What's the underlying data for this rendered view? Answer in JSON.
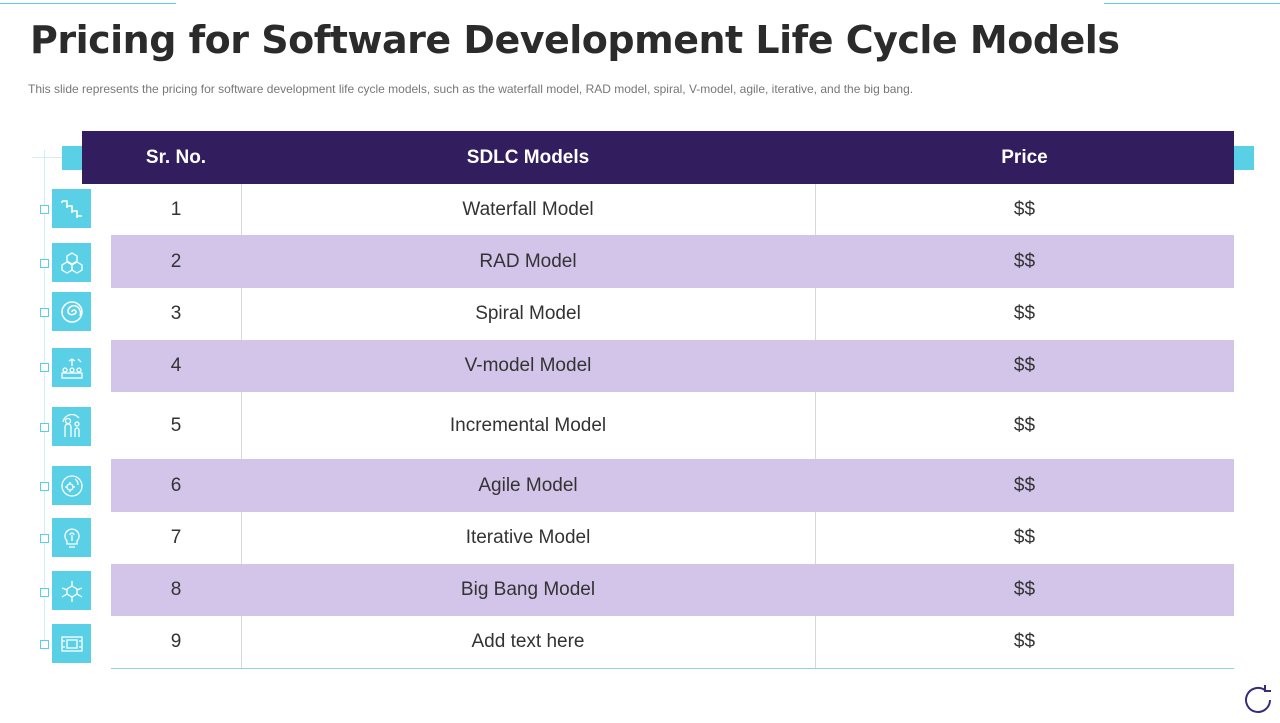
{
  "title": "Pricing for Software Development Life Cycle Models",
  "subtitle": "This slide represents the pricing for software development  life cycle models, such as the waterfall  model, RAD model,  spiral,  V-model,  agile,  iterative,  and the big bang.",
  "table": {
    "headers": {
      "no": "Sr. No.",
      "model": "SDLC Models",
      "price": "Price"
    },
    "rows": [
      {
        "no": "1",
        "model": "Waterfall Model",
        "price": "$$",
        "icon": "stairs-icon"
      },
      {
        "no": "2",
        "model": "RAD Model",
        "price": "$$",
        "icon": "cubes-icon"
      },
      {
        "no": "3",
        "model": "Spiral Model",
        "price": "$$",
        "icon": "spiral-icon"
      },
      {
        "no": "4",
        "model": "V-model Model",
        "price": "$$",
        "icon": "team-target-icon"
      },
      {
        "no": "5",
        "model": "Incremental Model",
        "price": "$$",
        "icon": "people-growth-icon"
      },
      {
        "no": "6",
        "model": "Agile Model",
        "price": "$$",
        "icon": "gear-cycle-icon"
      },
      {
        "no": "7",
        "model": "Iterative Model",
        "price": "$$",
        "icon": "lightbulb-brain-icon"
      },
      {
        "no": "8",
        "model": "Big Bang Model",
        "price": "$$",
        "icon": "cube-network-icon"
      },
      {
        "no": "9",
        "model": "Add text here",
        "price": "$$",
        "icon": "monitor-icon"
      }
    ]
  },
  "colors": {
    "header": "#321d5e",
    "shade": "#d3c5ea",
    "accent": "#5ad0e6"
  }
}
